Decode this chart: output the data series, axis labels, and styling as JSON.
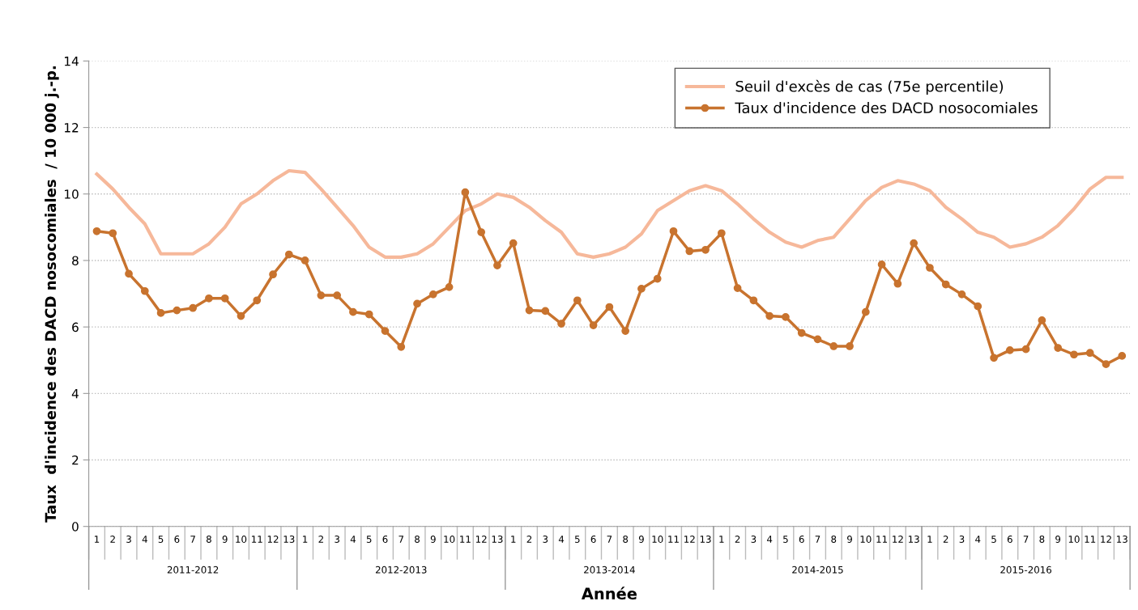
{
  "chart_data": {
    "type": "line",
    "xlabel": "Année",
    "ylabel": "Taux  d'incidence des DACD nosocomiales  / 10 000 j.-p.",
    "categories": [
      "1",
      "2",
      "3",
      "4",
      "5",
      "6",
      "7",
      "8",
      "9",
      "10",
      "11",
      "12",
      "13",
      "1",
      "2",
      "3",
      "4",
      "5",
      "6",
      "7",
      "8",
      "9",
      "10",
      "11",
      "12",
      "13",
      "1",
      "2",
      "3",
      "4",
      "5",
      "6",
      "7",
      "8",
      "9",
      "10",
      "11",
      "12",
      "13",
      "1",
      "2",
      "3",
      "4",
      "5",
      "6",
      "7",
      "8",
      "9",
      "10",
      "11",
      "12",
      "13",
      "1",
      "2",
      "3",
      "4",
      "5",
      "6",
      "7",
      "8",
      "9",
      "10",
      "11",
      "12",
      "13"
    ],
    "annotations": [
      "2011-2012",
      "2012-2013",
      "2013-2014",
      "2014-2015",
      "2015-2016"
    ],
    "series": [
      {
        "name": "Seuil d'excès de cas (75e percentile)",
        "color": "#f6b89a",
        "marker": "none",
        "values": [
          10.6,
          10.15,
          9.6,
          9.1,
          8.2,
          8.2,
          8.2,
          8.5,
          9.0,
          9.7,
          10.0,
          10.4,
          10.7,
          10.65,
          10.15,
          9.6,
          9.05,
          8.4,
          8.1,
          8.1,
          8.2,
          8.5,
          9.0,
          9.5,
          9.7,
          10.0,
          9.9,
          9.6,
          9.2,
          8.85,
          8.2,
          8.1,
          8.2,
          8.4,
          8.8,
          9.5,
          9.8,
          10.1,
          10.25,
          10.1,
          9.7,
          9.25,
          8.85,
          8.55,
          8.4,
          8.6,
          8.7,
          9.25,
          9.8,
          10.2,
          10.4,
          10.3,
          10.1,
          9.6,
          9.25,
          8.85,
          8.7,
          8.4,
          8.5,
          8.7,
          9.05,
          9.55,
          10.15,
          10.5,
          10.5
        ]
      },
      {
        "name": "Taux d'incidence des DACD nosocomiales",
        "color": "#c8732e",
        "marker": "circle",
        "values": [
          8.88,
          8.82,
          7.6,
          7.08,
          6.42,
          6.5,
          6.57,
          6.86,
          6.86,
          6.33,
          6.8,
          7.58,
          8.18,
          8.0,
          6.95,
          6.95,
          6.45,
          6.38,
          5.88,
          5.4,
          6.7,
          6.98,
          7.2,
          10.05,
          8.85,
          7.85,
          8.52,
          6.5,
          6.48,
          6.1,
          6.8,
          6.05,
          6.6,
          5.88,
          7.15,
          7.45,
          8.88,
          8.28,
          8.32,
          8.82,
          7.17,
          6.8,
          6.33,
          6.3,
          5.82,
          5.63,
          5.42,
          5.42,
          6.45,
          7.88,
          7.3,
          8.52,
          7.78,
          7.28,
          6.98,
          6.62,
          5.07,
          5.3,
          5.33,
          6.2,
          5.37,
          5.17,
          5.22,
          4.88,
          5.13
        ]
      }
    ],
    "ylim": [
      0,
      14
    ],
    "yticks": [
      0,
      2,
      4,
      6,
      8,
      10,
      12,
      14
    ],
    "grid": "y",
    "legend": "top right",
    "line_style": "solid"
  }
}
